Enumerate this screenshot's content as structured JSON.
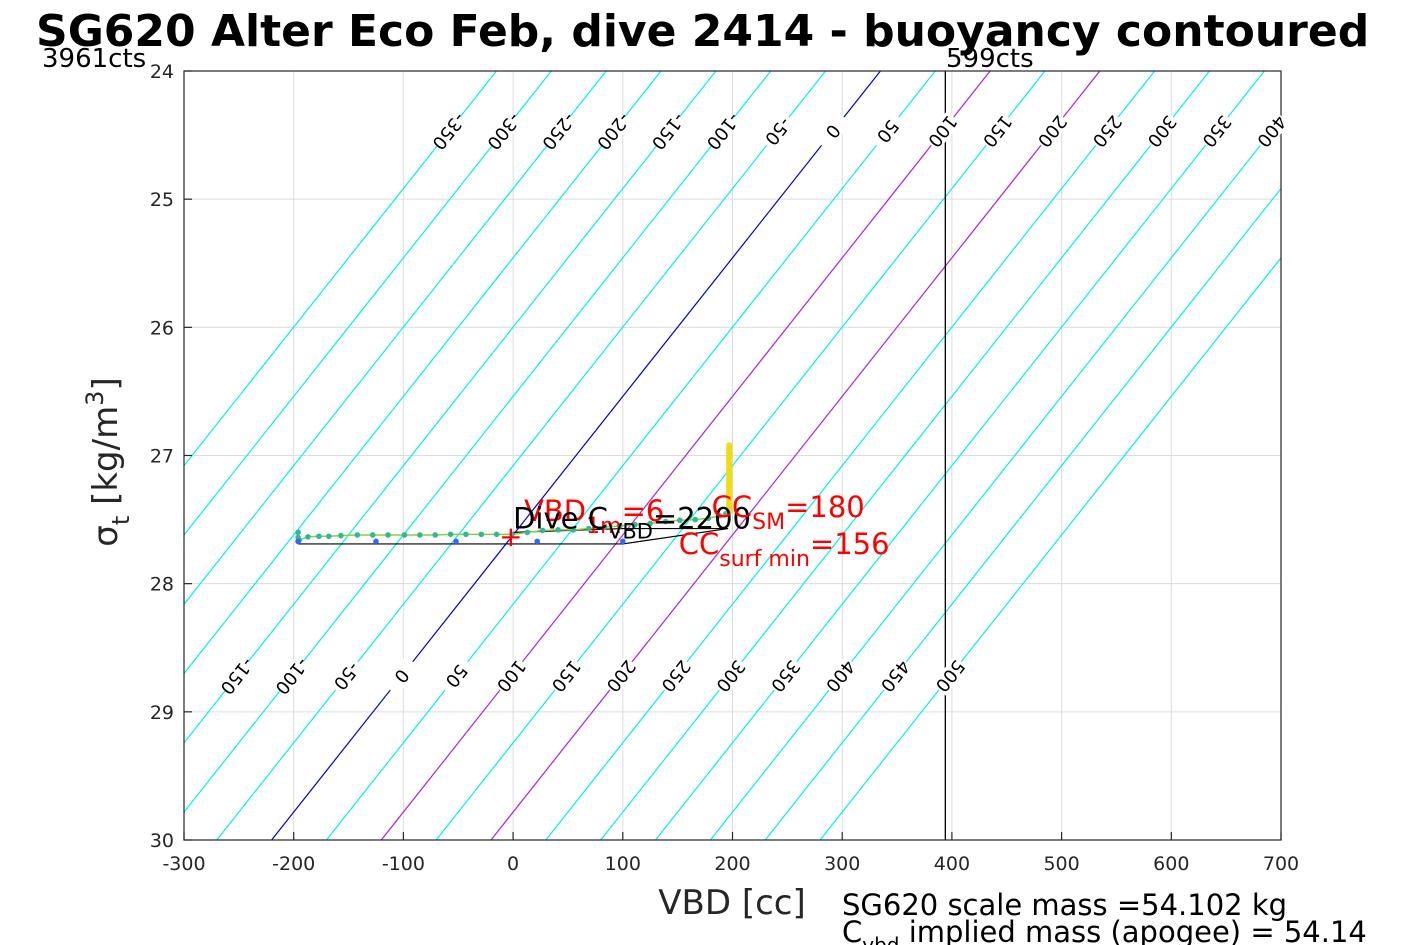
{
  "chart_data": {
    "type": "line",
    "title": "SG620 Alter Eco Feb, dive 2414 - buoyancy contoured",
    "xlabel": "VBD [cc]",
    "ylabel": {
      "symbol": "σ",
      "sub": "t",
      "units_main": " [kg/m",
      "units_sup": "3",
      "units_end": "]"
    },
    "xlim": [
      -300,
      700
    ],
    "ylim": [
      24,
      30
    ],
    "y_reversed": true,
    "grid": true,
    "x_ticks": [
      -300,
      -200,
      -100,
      0,
      100,
      200,
      300,
      400,
      500,
      600,
      700
    ],
    "x_tick_labels": [
      "-300",
      "-200",
      "-100",
      "0",
      "100",
      "200",
      "300",
      "400",
      "500",
      "600",
      "700"
    ],
    "y_ticks": [
      24,
      25,
      26,
      27,
      28,
      29,
      30
    ],
    "y_tick_labels": [
      "24",
      "25",
      "26",
      "27",
      "28",
      "29",
      "30"
    ],
    "contours": {
      "values": [
        -350,
        -300,
        -250,
        -200,
        -150,
        -100,
        -50,
        0,
        50,
        100,
        150,
        200,
        250,
        300,
        350,
        400,
        450,
        500
      ],
      "labels": [
        "-350",
        "-300",
        "-250",
        "-200",
        "-150",
        "-100",
        "-50",
        "0",
        "50",
        "100",
        "150",
        "200",
        "250",
        "300",
        "350",
        "400",
        "450",
        "500"
      ],
      "zero_color": "#0000cc",
      "highlight_values": [
        100,
        200
      ],
      "highlight_color": "#aa22dd",
      "color": "#00f0f0",
      "upper_labels": [
        "-350",
        "-300",
        "-250",
        "-200",
        "-150",
        "-100",
        "-50",
        "0",
        "50",
        "100",
        "150",
        "200",
        "250",
        "300",
        "350",
        "400",
        "450",
        "500"
      ],
      "lower_labels": [
        "-150",
        "-100",
        "-50",
        "0",
        "50",
        "100",
        "150",
        "200",
        "250",
        "300",
        "350",
        "400",
        "450",
        "500"
      ]
    },
    "vertical_line": {
      "x": 394,
      "color": "#000000"
    },
    "counts_left": "3961cts",
    "counts_right": "599cts",
    "series": [
      {
        "color": "#2fb89a",
        "x": [
          -196,
          -196,
          -195,
          -187,
          -177,
          -168,
          -157,
          -142,
          -128,
          -114,
          -99,
          -85,
          -71,
          -57,
          -43,
          -29,
          -15,
          -1,
          13,
          27,
          41,
          55,
          69,
          83,
          97,
          111,
          125,
          139,
          152,
          166,
          178,
          188,
          194,
          197
        ],
        "y": [
          27.6,
          27.64,
          27.66,
          27.635,
          27.63,
          27.63,
          27.625,
          27.62,
          27.62,
          27.62,
          27.62,
          27.62,
          27.62,
          27.615,
          27.615,
          27.615,
          27.615,
          27.615,
          27.6,
          27.585,
          27.58,
          27.58,
          27.57,
          27.56,
          27.55,
          27.54,
          27.53,
          27.515,
          27.505,
          27.5,
          27.49,
          27.47,
          27.455,
          27.44
        ]
      },
      {
        "color": "#3366ff",
        "x": [
          -196,
          -125,
          -52,
          22,
          100
        ],
        "y": [
          27.67,
          27.67,
          27.67,
          27.67,
          27.67
        ]
      },
      {
        "color": "#eedd11",
        "x": [
          197,
          197,
          197,
          197,
          197,
          197,
          197
        ],
        "y": [
          26.92,
          27.0,
          27.1,
          27.2,
          27.3,
          27.38,
          27.44
        ]
      }
    ],
    "black_line": {
      "x": [
        -196,
        100,
        196,
        100,
        0
      ],
      "y": [
        27.69,
        27.69,
        27.57,
        27.57,
        27.6
      ]
    },
    "marker": {
      "x": -2,
      "y": 27.63,
      "symbol": "+"
    },
    "annotations": [
      {
        "id": "vbd1m",
        "pre": "VBD",
        "sub": "1m",
        "post": "=6",
        "x": 10,
        "y": 27.51,
        "color": "#ff0000"
      },
      {
        "id": "divecvbd",
        "pre": "Dive C",
        "sub": "VBD",
        "post": "=2200",
        "x": 0,
        "y": 27.57,
        "color": "#000000"
      },
      {
        "id": "ccsm",
        "pre": "CC",
        "sub": "SM",
        "post": "=180",
        "x": 181,
        "y": 27.48,
        "color": "#ff0000"
      },
      {
        "id": "ccsurf",
        "pre": "CC",
        "sub": "surf min",
        "post": "=156",
        "x": 151,
        "y": 27.77,
        "color": "#ff0000"
      }
    ],
    "footer_line1": "SG620 scale mass =54.102 kg",
    "footer_line2": {
      "pre": "C",
      "sub": "vbd",
      "post": " implied mass (apogee) = 54.14"
    }
  }
}
